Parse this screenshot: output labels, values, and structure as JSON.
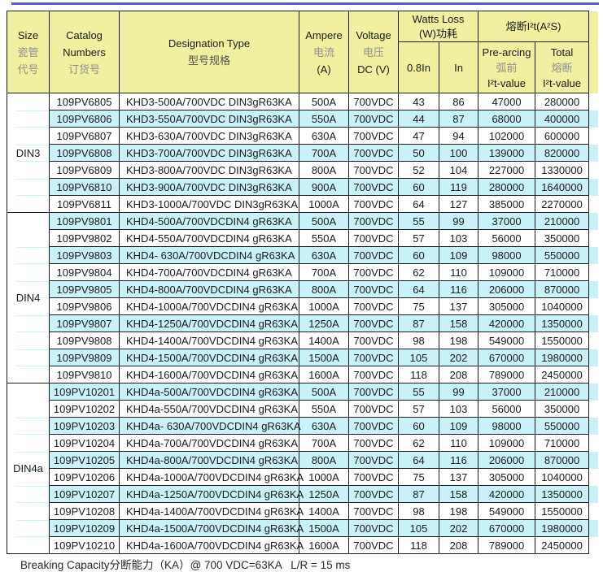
{
  "colors": {
    "top_bar": "#5a5ae0",
    "header_yellow": "#f0f0a0",
    "row_cyan": "#c9f2f8"
  },
  "header": {
    "size": [
      "Size",
      "瓷管",
      "代号"
    ],
    "catalog": [
      "Catalog",
      "Numbers",
      "订货号"
    ],
    "designation": [
      "Designation Type",
      "型号规格"
    ],
    "ampere": [
      "Ampere",
      "电流",
      "(A)"
    ],
    "voltage": [
      "Voltage",
      "电压",
      "DC (V)"
    ],
    "watts_group": [
      "Watts Loss",
      "(W)功耗"
    ],
    "watts_sub": [
      "0.8In",
      "In"
    ],
    "i2t_group": "熔断I²t(A²S)",
    "prearcing_sub": [
      "Pre-arcing",
      "弧前",
      "I²t-value"
    ],
    "total_sub": [
      "Total",
      "熔断",
      "I²t-value"
    ]
  },
  "sections": [
    {
      "size": "DIN3",
      "rows": [
        [
          "109PV6805",
          "KHD3-500A/700VDC DIN3gR63KA",
          "500A",
          "700VDC",
          "43",
          "86",
          "47000",
          "280000"
        ],
        [
          "109PV6806",
          "KHD3-550A/700VDC DIN3gR63KA",
          "550A",
          "700VDC",
          "44",
          "87",
          "68000",
          "400000"
        ],
        [
          "109PV6807",
          "KHD3-630A/700VDC DIN3gR63KA",
          "630A",
          "700VDC",
          "47",
          "94",
          "102000",
          "600000"
        ],
        [
          "109PV6808",
          "KHD3-700A/700VDC DIN3gR63KA",
          "700A",
          "700VDC",
          "50",
          "100",
          "139000",
          "820000"
        ],
        [
          "109PV6809",
          "KHD3-800A/700VDC DIN3gR63KA",
          "800A",
          "700VDC",
          "52",
          "104",
          "227000",
          "1330000"
        ],
        [
          "109PV6810",
          "KHD3-900A/700VDC DIN3gR63KA",
          "900A",
          "700VDC",
          "60",
          "119",
          "280000",
          "1640000"
        ],
        [
          "109PV6811",
          "KHD3-1000A/700VDC DIN3gR63KA",
          "1000A",
          "700VDC",
          "64",
          "127",
          "385000",
          "2270000"
        ]
      ]
    },
    {
      "size": "DIN4",
      "rows": [
        [
          "109PV9801",
          "KHD4-500A/700VDCDIN4 gR63KA",
          "500A",
          "700VDC",
          "55",
          "99",
          "37000",
          "210000"
        ],
        [
          "109PV9802",
          "KHD4-550A/700VDCDIN4 gR63KA",
          "550A",
          "700VDC",
          "57",
          "103",
          "56000",
          "350000"
        ],
        [
          "109PV9803",
          "KHD4- 630A/700VDCDIN4 gR63KA",
          "630A",
          "700VDC",
          "60",
          "109",
          "98000",
          "550000"
        ],
        [
          "109PV9804",
          "KHD4-700A/700VDCDIN4 gR63KA",
          "700A",
          "700VDC",
          "62",
          "110",
          "109000",
          "710000"
        ],
        [
          "109PV9805",
          "KHD4-800A/700VDCDIN4 gR63KA",
          "800A",
          "700VDC",
          "64",
          "116",
          "206000",
          "870000"
        ],
        [
          "109PV9806",
          "KHD4-1000A/700VDCDIN4 gR63KA",
          "1000A",
          "700VDC",
          "75",
          "137",
          "305000",
          "1040000"
        ],
        [
          "109PV9807",
          "KHD4-1250A/700VDCDIN4 gR63KA",
          "1250A",
          "700VDC",
          "87",
          "158",
          "420000",
          "1350000"
        ],
        [
          "109PV9808",
          "KHD4-1400A/700VDCDIN4 gR63KA",
          "1400A",
          "700VDC",
          "98",
          "198",
          "549000",
          "1550000"
        ],
        [
          "109PV9809",
          "KHD4-1500A/700VDCDIN4 gR63KA",
          "1500A",
          "700VDC",
          "105",
          "202",
          "670000",
          "1980000"
        ],
        [
          "109PV9810",
          "KHD4-1600A/700VDCDIN4 gR63KA",
          "1600A",
          "700VDC",
          "118",
          "208",
          "789000",
          "2450000"
        ]
      ]
    },
    {
      "size": "DIN4a",
      "rows": [
        [
          "109PV10201",
          "KHD4a-500A/700VDCDIN4 gR63KA",
          "500A",
          "700VDC",
          "55",
          "99",
          "37000",
          "210000"
        ],
        [
          "109PV10202",
          "KHD4a-550A/700VDCDIN4 gR63KA",
          "550A",
          "700VDC",
          "57",
          "103",
          "56000",
          "350000"
        ],
        [
          "109PV10203",
          "KHD4a- 630A/700VDCDIN4 gR63KA",
          "630A",
          "700VDC",
          "60",
          "109",
          "98000",
          "550000"
        ],
        [
          "109PV10204",
          "KHD4a-700A/700VDCDIN4 gR63KA",
          "700A",
          "700VDC",
          "62",
          "110",
          "109000",
          "710000"
        ],
        [
          "109PV10205",
          "KHD4a-800A/700VDCDIN4 gR63KA",
          "800A",
          "700VDC",
          "64",
          "116",
          "206000",
          "870000"
        ],
        [
          "109PV10206",
          "KHD4a-1000A/700VDCDIN4 gR63KA",
          "1000A",
          "700VDC",
          "75",
          "137",
          "305000",
          "1040000"
        ],
        [
          "109PV10207",
          "KHD4a-1250A/700VDCDIN4 gR63KA",
          "1250A",
          "700VDC",
          "87",
          "158",
          "420000",
          "1350000"
        ],
        [
          "109PV10208",
          "KHD4a-1400A/700VDCDIN4 gR63KA",
          "1400A",
          "700VDC",
          "98",
          "198",
          "549000",
          "1550000"
        ],
        [
          "109PV10209",
          "KHD4a-1500A/700VDCDIN4 gR63KA",
          "1500A",
          "700VDC",
          "105",
          "202",
          "670000",
          "1980000"
        ],
        [
          "109PV10210",
          "KHD4a-1600A/700VDCDIN4 gR63KA",
          "1600A",
          "700VDC",
          "118",
          "208",
          "789000",
          "2450000"
        ]
      ]
    }
  ],
  "column_cell_names": [
    "catalog-number-cell",
    "designation-cell",
    "ampere-cell",
    "voltage-cell",
    "watts-08in-cell",
    "watts-in-cell",
    "prearcing-i2t-cell",
    "total-i2t-cell"
  ],
  "footer": "Breaking Capacity分断能力（KA）@ 700 VDC=63KA   L/R = 15 ms"
}
